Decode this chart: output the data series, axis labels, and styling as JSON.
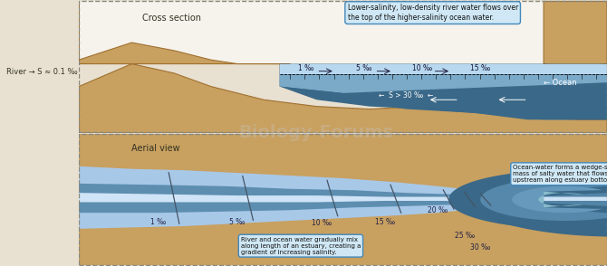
{
  "fig_width": 6.7,
  "fig_height": 2.94,
  "dpi": 100,
  "bg_color": "#e8e0d0",
  "sand_color": "#c8a060",
  "sand_edge": "#a07030",
  "river_water_light": "#b8d8f0",
  "ocean_dark": "#3a6888",
  "ocean_mid": "#5588aa",
  "ocean_light": "#7aaac8",
  "mixing_color": "#88b8d8",
  "white_color": "#e8f4f8",
  "border_color": "#888880",
  "text_color": "#333322",
  "callout_bg": "#d0e8f5",
  "callout_border": "#4488bb",
  "top_callout_text": "Lower-salinity, low-density river water flows over\nthe top of the higher-salinity ocean water.",
  "bottom_right_callout_text": "Ocean-water forms a wedge-shaped\nmass of salty water that flows\nupstream along estuary bottom.",
  "bottom_mid_callout_text": "River and ocean water gradually mix\nalong length of an estuary, creating a\ngradient of increasing salinity.",
  "cross_section_label": "Cross section",
  "aerial_view_label": "Aerial view",
  "river_label": "River → S ≈ 0.1 ‰",
  "ocean_label": "← Ocean",
  "salt_label": "← S > 30 ‰ ←",
  "sal_top_labels": [
    "1 ‰",
    "5 ‰",
    "10 ‰",
    "15 ‰"
  ],
  "sal_bot_labels": [
    "1 ‰",
    "5 ‰",
    "10 ‰",
    "15 ‰",
    "20 ‰",
    "25 ‰",
    "30 ‰"
  ]
}
